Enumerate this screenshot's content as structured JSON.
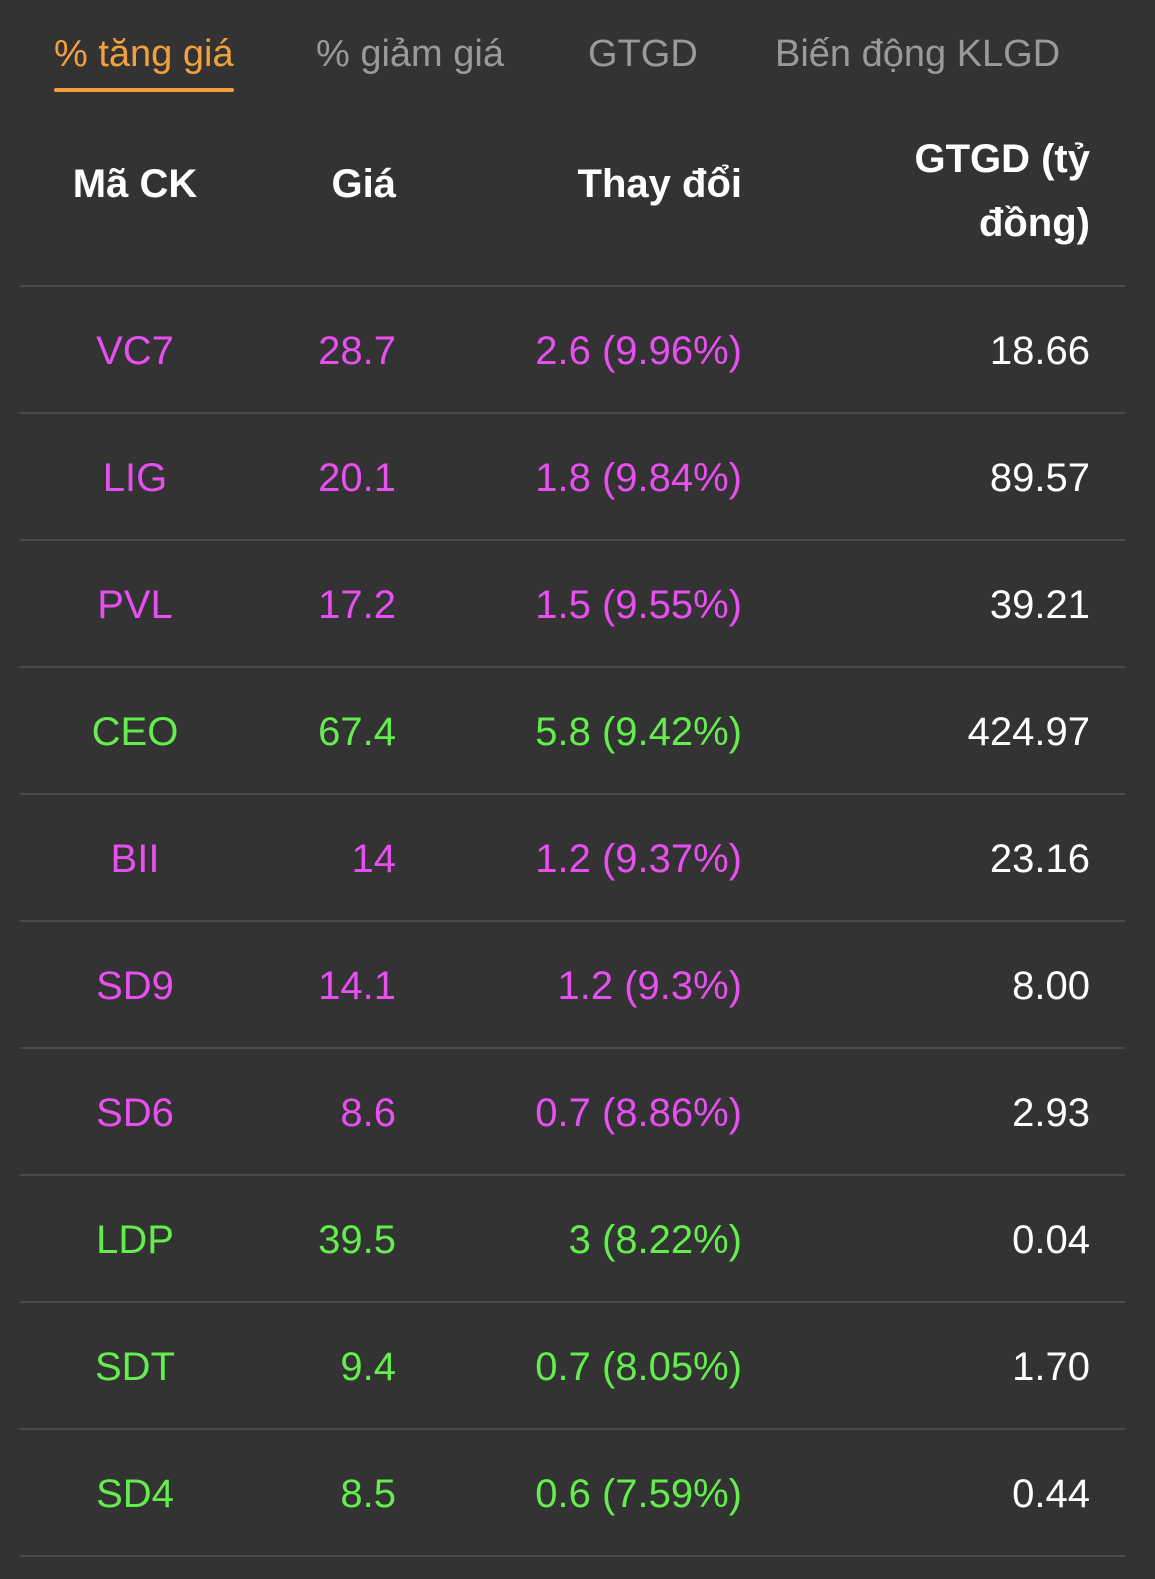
{
  "tabs": [
    {
      "label": "% tăng giá",
      "active": true
    },
    {
      "label": "% giảm giá",
      "active": false
    },
    {
      "label": "GTGD",
      "active": false
    },
    {
      "label": "Biến động KLGD",
      "active": false
    }
  ],
  "table": {
    "headers": {
      "code": "Mã CK",
      "price": "Giá",
      "change": "Thay đổi",
      "value": "GTGD (tỷ đồng)"
    },
    "rows": [
      {
        "code": "VC7",
        "price": "28.7",
        "change": "2.6 (9.96%)",
        "value": "18.66",
        "color": "#e84ff0"
      },
      {
        "code": "LIG",
        "price": "20.1",
        "change": "1.8 (9.84%)",
        "value": "89.57",
        "color": "#e84ff0"
      },
      {
        "code": "PVL",
        "price": "17.2",
        "change": "1.5 (9.55%)",
        "value": "39.21",
        "color": "#e84ff0"
      },
      {
        "code": "CEO",
        "price": "67.4",
        "change": "5.8 (9.42%)",
        "value": "424.97",
        "color": "#63ee4d"
      },
      {
        "code": "BII",
        "price": "14",
        "change": "1.2 (9.37%)",
        "value": "23.16",
        "color": "#e84ff0"
      },
      {
        "code": "SD9",
        "price": "14.1",
        "change": "1.2 (9.3%)",
        "value": "8.00",
        "color": "#e84ff0"
      },
      {
        "code": "SD6",
        "price": "8.6",
        "change": "0.7 (8.86%)",
        "value": "2.93",
        "color": "#e84ff0"
      },
      {
        "code": "LDP",
        "price": "39.5",
        "change": "3 (8.22%)",
        "value": "0.04",
        "color": "#63ee4d"
      },
      {
        "code": "SDT",
        "price": "9.4",
        "change": "0.7 (8.05%)",
        "value": "1.70",
        "color": "#63ee4d"
      },
      {
        "code": "SD4",
        "price": "8.5",
        "change": "0.6 (7.59%)",
        "value": "0.44",
        "color": "#63ee4d"
      }
    ]
  },
  "colors": {
    "background": "#333333",
    "accent": "#f2a03d",
    "ceiling": "#e84ff0",
    "up": "#63ee4d",
    "inactive_tab": "#9a9a9a",
    "divider": "#4a4a4a"
  }
}
